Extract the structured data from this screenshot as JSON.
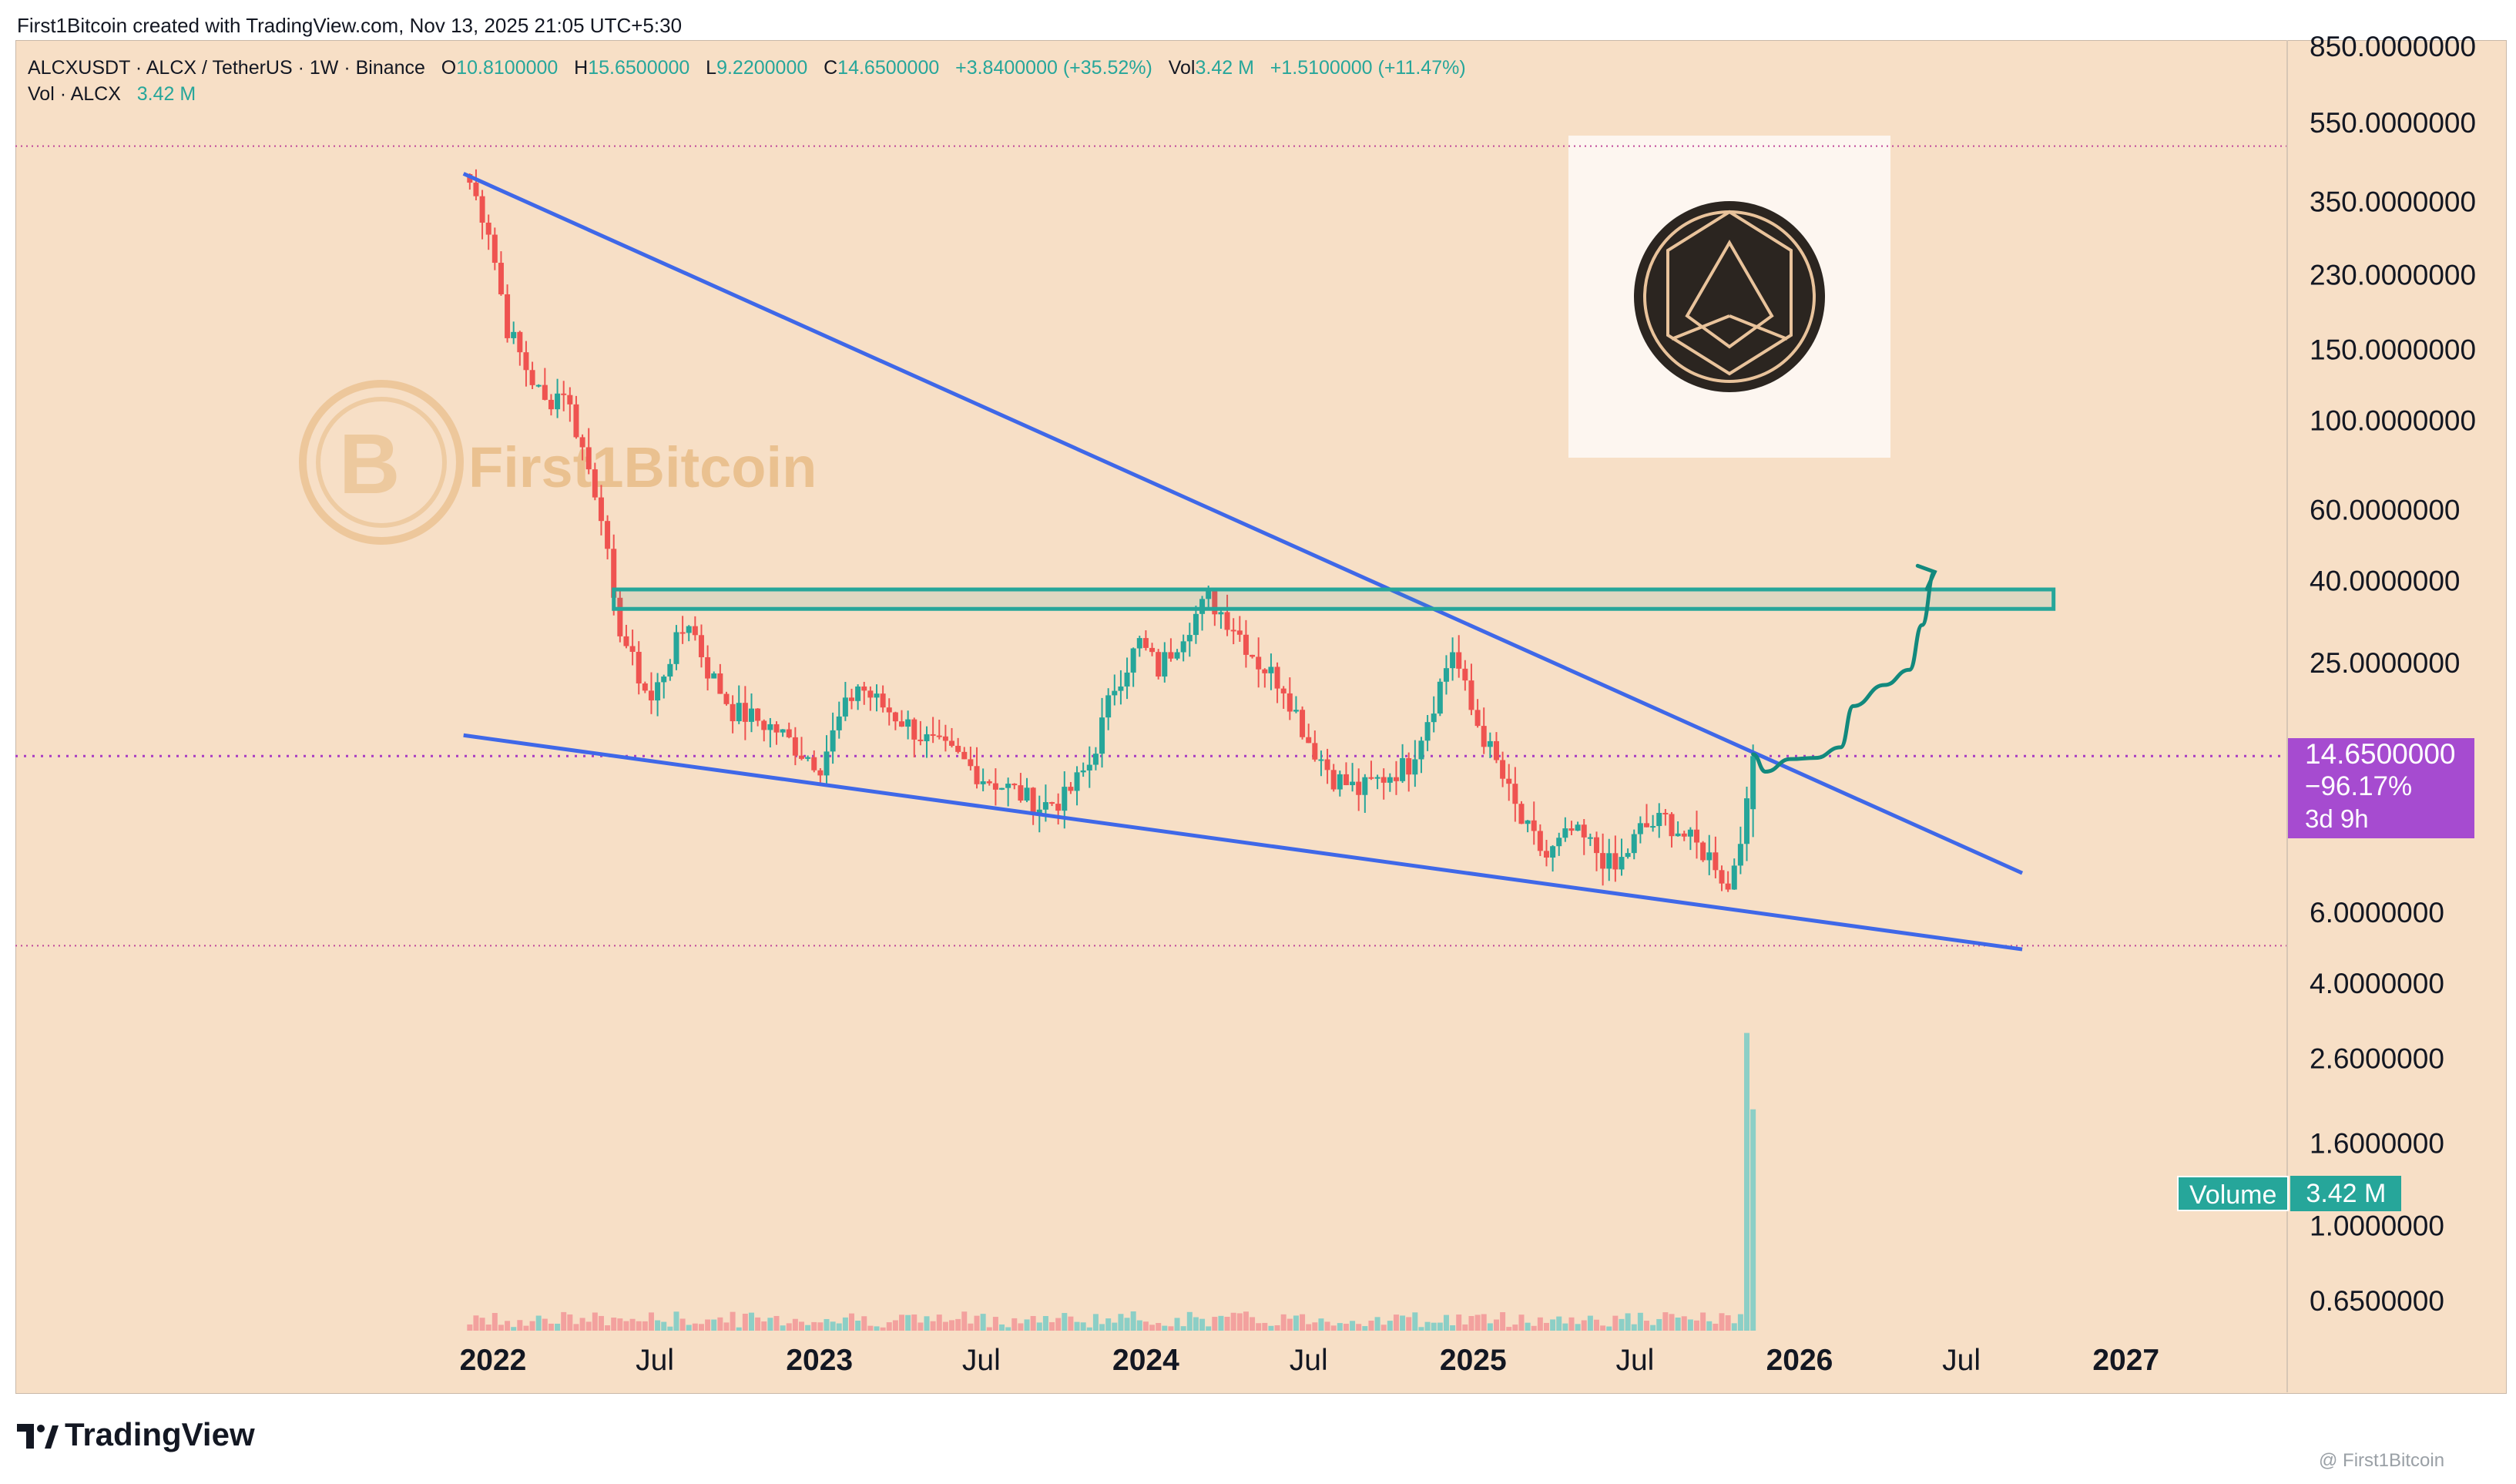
{
  "header": {
    "attribution": "First1Bitcoin created with TradingView.com, Nov 13, 2025 21:05 UTC+5:30"
  },
  "legend": {
    "symbol": "ALCXUSDT · ALCX / TetherUS · 1W · Binance",
    "open_label": "O",
    "open": "10.8100000",
    "high_label": "H",
    "high": "15.6500000",
    "low_label": "L",
    "low": "9.2200000",
    "close_label": "C",
    "close": "14.6500000",
    "change": "+3.8400000 (+35.52%)",
    "vol_label": "Vol",
    "vol": "3.42 M",
    "vol_change": "+1.5100000 (+11.47%)",
    "vol_series_label": "Vol · ALCX",
    "vol_series_value": "3.42 M"
  },
  "watermark": {
    "text": "First1Bitcoin"
  },
  "price_tag": {
    "price": "14.6500000",
    "change": "−96.17%",
    "countdown": "3d 9h"
  },
  "volume_tag": {
    "label": "Volume",
    "value": "3.42 M"
  },
  "footer": {
    "brand": "TradingView",
    "corner_watermark": "@ First1Bitcoin"
  },
  "colors": {
    "up": "#26a69a",
    "down": "#ef5350",
    "trendline": "#3f68e8",
    "resistance_box": "#26a69a",
    "background": "#f7dfc6",
    "price_tag": "#a64bd0"
  },
  "chart_data": {
    "type": "candlestick",
    "symbol": "ALCXUSDT",
    "interval": "1W",
    "y_scale": "log",
    "y_ticks": [
      "850.0000000",
      "550.0000000",
      "350.0000000",
      "230.0000000",
      "150.0000000",
      "100.0000000",
      "60.0000000",
      "40.0000000",
      "25.0000000",
      "6.0000000",
      "4.0000000",
      "2.6000000",
      "1.6000000",
      "1.0000000",
      "0.6500000"
    ],
    "x_ticks": [
      "2022",
      "Jul",
      "2023",
      "Jul",
      "2024",
      "Jul",
      "2025",
      "Jul",
      "2026",
      "Jul",
      "2027"
    ],
    "x_ticks_bold": [
      "2022",
      "2023",
      "2024",
      "2025",
      "2026",
      "2027"
    ],
    "x_range": [
      "2021-10",
      "2027-05"
    ],
    "current_price": 14.65,
    "all_time_high_line": 480,
    "low_line": 4.95,
    "close_path": [
      [
        "2021-12-06",
        390
      ],
      [
        "2021-12-27",
        300
      ],
      [
        "2022-01-17",
        170
      ],
      [
        "2022-02-07",
        135
      ],
      [
        "2022-02-28",
        110
      ],
      [
        "2022-03-21",
        120
      ],
      [
        "2022-04-11",
        85
      ],
      [
        "2022-05-02",
        60
      ],
      [
        "2022-05-16",
        34
      ],
      [
        "2022-06-06",
        25
      ],
      [
        "2022-06-27",
        20
      ],
      [
        "2022-07-18",
        26
      ],
      [
        "2022-08-08",
        32
      ],
      [
        "2022-08-29",
        24
      ],
      [
        "2022-09-26",
        19
      ],
      [
        "2022-10-24",
        18
      ],
      [
        "2022-11-14",
        17
      ],
      [
        "2022-12-12",
        15
      ],
      [
        "2023-01-02",
        14
      ],
      [
        "2023-01-23",
        18
      ],
      [
        "2023-02-13",
        22
      ],
      [
        "2023-03-06",
        20
      ],
      [
        "2023-04-03",
        18
      ],
      [
        "2023-05-01",
        16
      ],
      [
        "2023-06-05",
        14.5
      ],
      [
        "2023-07-03",
        13
      ],
      [
        "2023-08-07",
        12
      ],
      [
        "2023-09-04",
        11
      ],
      [
        "2023-10-02",
        11.5
      ],
      [
        "2023-10-30",
        14
      ],
      [
        "2023-11-27",
        22
      ],
      [
        "2023-12-25",
        28
      ],
      [
        "2024-01-15",
        24
      ],
      [
        "2024-02-12",
        30
      ],
      [
        "2024-03-11",
        36
      ],
      [
        "2024-04-08",
        31
      ],
      [
        "2024-05-06",
        25
      ],
      [
        "2024-06-03",
        22
      ],
      [
        "2024-07-01",
        16
      ],
      [
        "2024-07-29",
        13
      ],
      [
        "2024-08-26",
        12
      ],
      [
        "2024-09-23",
        13
      ],
      [
        "2024-10-21",
        14
      ],
      [
        "2024-11-18",
        20
      ],
      [
        "2024-12-09",
        27
      ],
      [
        "2024-12-30",
        19
      ],
      [
        "2025-01-27",
        14
      ],
      [
        "2025-02-24",
        10
      ],
      [
        "2025-03-24",
        8.2
      ],
      [
        "2025-04-21",
        9.5
      ],
      [
        "2025-05-12",
        8.8
      ],
      [
        "2025-06-09",
        7.6
      ],
      [
        "2025-07-07",
        9.6
      ],
      [
        "2025-08-04",
        10.2
      ],
      [
        "2025-09-01",
        9.0
      ],
      [
        "2025-09-29",
        8.0
      ],
      [
        "2025-10-13",
        6.8
      ],
      [
        "2025-10-27",
        9.5
      ],
      [
        "2025-11-03",
        10.81
      ],
      [
        "2025-11-10",
        14.65
      ]
    ],
    "volume_m_range": [
      0,
      5.0
    ],
    "volume_last_m": 3.42,
    "annotations": {
      "upper_trendline": [
        [
          "2021-11-29",
          410
        ],
        [
          "2026-09-07",
          7.5
        ]
      ],
      "lower_trendline": [
        [
          "2021-11-29",
          16.5
        ],
        [
          "2026-09-07",
          4.85
        ]
      ],
      "resistance_zone": {
        "from": "2022-05-16",
        "to": "2026-10-12",
        "low": 34,
        "high": 38
      },
      "projection_path": [
        [
          "2025-11-10",
          14.8
        ],
        [
          "2025-11-24",
          13.4
        ],
        [
          "2025-12-22",
          14.4
        ],
        [
          "2026-01-19",
          14.5
        ],
        [
          "2026-02-16",
          15.4
        ],
        [
          "2026-03-02",
          19.5
        ],
        [
          "2026-04-06",
          22
        ],
        [
          "2026-05-04",
          24
        ],
        [
          "2026-05-18",
          31
        ],
        [
          "2026-06-01",
          42
        ]
      ]
    }
  }
}
